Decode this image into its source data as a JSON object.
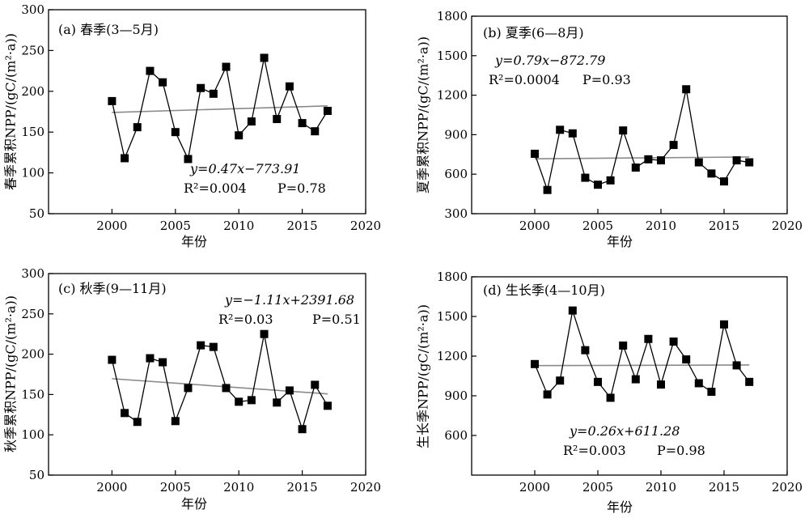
{
  "chart_data": [
    {
      "type": "line",
      "title": "(a) 春季(3—5月)",
      "xlabel": "年份",
      "ylabel": "春季累积NPP/(gC/(m²·a))",
      "xlim": [
        1995,
        2020
      ],
      "ylim": [
        50,
        300
      ],
      "xticks": [
        2000,
        2005,
        2010,
        2015,
        2020
      ],
      "yticks": [
        50,
        100,
        150,
        200,
        250,
        300
      ],
      "grid": false,
      "x": [
        2000,
        2001,
        2002,
        2003,
        2004,
        2005,
        2006,
        2007,
        2008,
        2009,
        2010,
        2011,
        2012,
        2013,
        2014,
        2015,
        2016,
        2017
      ],
      "series": [
        {
          "values": [
            188,
            118,
            156,
            225,
            211,
            150,
            117,
            204,
            197,
            230,
            146,
            163,
            241,
            166,
            206,
            161,
            151,
            176
          ]
        }
      ],
      "trend": {
        "slope": 0.47,
        "intercept": -773.91,
        "x_range": [
          2000,
          2017
        ]
      },
      "equation": {
        "line1": "y=0.47x−773.91",
        "r2": "R²=0.004",
        "p": "P=0.78"
      }
    },
    {
      "type": "line",
      "title": "(b) 夏季(6—8月)",
      "xlabel": "年份",
      "ylabel": "夏季累积NPP/(gC/(m²·a))",
      "xlim": [
        1995,
        2020
      ],
      "ylim": [
        300,
        1800
      ],
      "xticks": [
        2000,
        2005,
        2010,
        2015,
        2020
      ],
      "yticks": [
        300,
        600,
        900,
        1200,
        1500,
        1800
      ],
      "grid": false,
      "x": [
        2000,
        2001,
        2002,
        2003,
        2004,
        2005,
        2006,
        2007,
        2008,
        2009,
        2010,
        2011,
        2012,
        2013,
        2014,
        2015,
        2016,
        2017
      ],
      "series": [
        {
          "values": [
            755,
            480,
            937,
            910,
            573,
            520,
            553,
            932,
            650,
            713,
            705,
            822,
            1245,
            690,
            605,
            545,
            705,
            690
          ]
        }
      ],
      "trend": {
        "slope": 0.79,
        "intercept": -872.79,
        "x_range": [
          2000,
          2017
        ]
      },
      "equation": {
        "line1": "y=0.79x−872.79",
        "r2": "R²=0.0004",
        "p": "P=0.93"
      }
    },
    {
      "type": "line",
      "title": "(c) 秋季(9—11月)",
      "xlabel": "年份",
      "ylabel": "秋季累积NPP/(gC/(m²·a))",
      "xlim": [
        1995,
        2020
      ],
      "ylim": [
        50,
        300
      ],
      "xticks": [
        2000,
        2005,
        2010,
        2015,
        2020
      ],
      "yticks": [
        50,
        100,
        150,
        200,
        250,
        300
      ],
      "grid": false,
      "x": [
        2000,
        2001,
        2002,
        2003,
        2004,
        2005,
        2006,
        2007,
        2008,
        2009,
        2010,
        2011,
        2012,
        2013,
        2014,
        2015,
        2016,
        2017
      ],
      "series": [
        {
          "values": [
            193,
            127,
            116,
            195,
            190,
            117,
            158,
            211,
            209,
            158,
            141,
            143,
            225,
            140,
            155,
            107,
            162,
            136
          ]
        }
      ],
      "trend": {
        "slope": -1.11,
        "intercept": 2391.68,
        "x_range": [
          2000,
          2017
        ]
      },
      "equation": {
        "line1": "y=−1.11x+2391.68",
        "r2": "R²=0.03",
        "p": "P=0.51"
      }
    },
    {
      "type": "line",
      "title": "(d) 生长季(4—10月)",
      "xlabel": "年份",
      "ylabel": "生长季NPP/(gC/(m²·a))",
      "xlim": [
        1995,
        2020
      ],
      "ylim": [
        300,
        1800
      ],
      "xticks": [
        2000,
        2005,
        2010,
        2015,
        2020
      ],
      "yticks": [
        600,
        900,
        1200,
        1500,
        1800
      ],
      "grid": false,
      "x": [
        2000,
        2001,
        2002,
        2003,
        2004,
        2005,
        2006,
        2007,
        2008,
        2009,
        2010,
        2011,
        2012,
        2013,
        2014,
        2015,
        2016,
        2017
      ],
      "series": [
        {
          "values": [
            1140,
            910,
            1015,
            1545,
            1245,
            1005,
            885,
            1280,
            1025,
            1330,
            985,
            1310,
            1175,
            995,
            930,
            1440,
            1130,
            1005
          ]
        }
      ],
      "trend": {
        "slope": 0.26,
        "intercept": 611.28,
        "x_range": [
          2000,
          2017
        ]
      },
      "equation": {
        "line1": "y=0.26x+611.28",
        "r2": "R²=0.003",
        "p": "P=0.98"
      }
    }
  ]
}
